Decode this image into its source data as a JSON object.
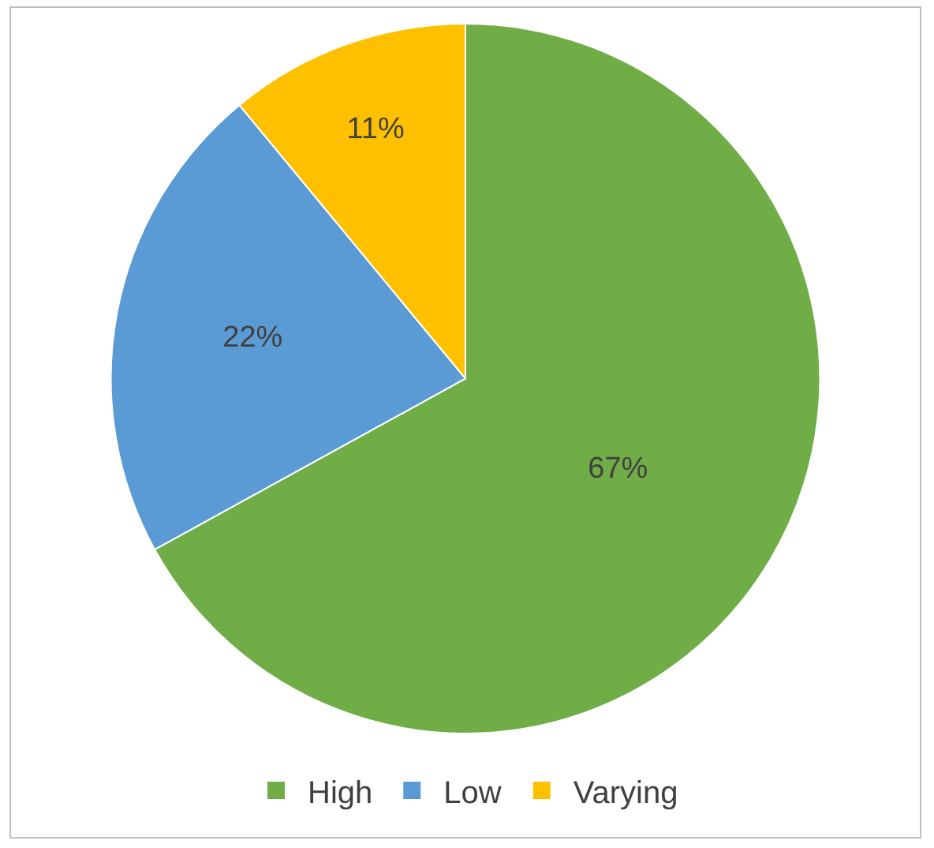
{
  "chart_data": {
    "type": "pie",
    "categories": [
      "High",
      "Low",
      "Varying"
    ],
    "values": [
      67,
      22,
      11
    ],
    "colors": [
      "#70ad47",
      "#5b9bd5",
      "#ffc000"
    ],
    "value_labels": [
      "67%",
      "22%",
      "11%"
    ],
    "legend": "bottom"
  }
}
